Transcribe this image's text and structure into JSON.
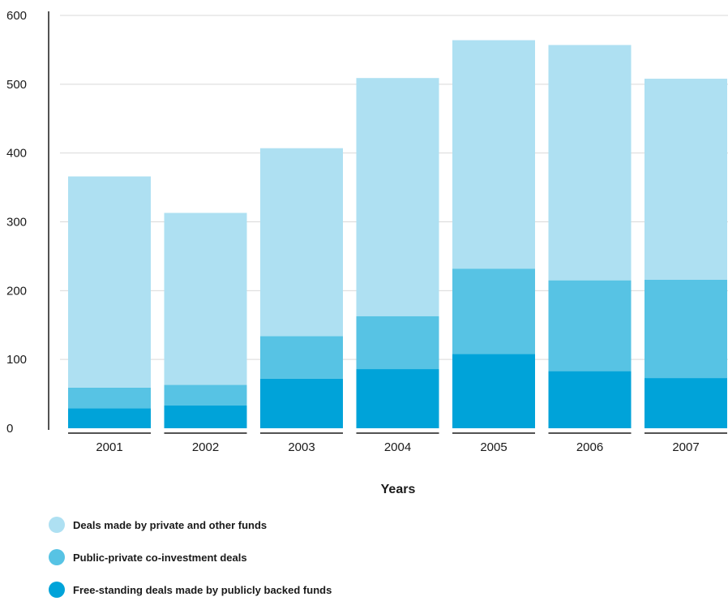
{
  "chart_data": {
    "type": "bar",
    "stacked": true,
    "categories": [
      "2001",
      "2002",
      "2003",
      "2004",
      "2005",
      "2006",
      "2007"
    ],
    "series": [
      {
        "name": "Free-standing deals made by publicly backed funds",
        "color": "#00a3d9",
        "values": [
          29,
          33,
          72,
          86,
          108,
          83,
          73
        ]
      },
      {
        "name": "Public-private co-investment deals",
        "color": "#57c3e4",
        "values": [
          30,
          30,
          62,
          77,
          124,
          132,
          143
        ]
      },
      {
        "name": "Deals made by private and other funds",
        "color": "#aee0f2",
        "values": [
          307,
          250,
          273,
          346,
          332,
          342,
          292
        ]
      }
    ],
    "yticks": [
      0,
      100,
      200,
      300,
      400,
      500,
      600
    ],
    "ylim": [
      0,
      600
    ],
    "xlabel": "Years",
    "ylabel": "",
    "title": "",
    "grid": true,
    "legend_position": "bottom-left"
  },
  "legend": [
    {
      "label": "Deals made by private and other funds",
      "color": "#aee0f2"
    },
    {
      "label": "Public-private co-investment deals",
      "color": "#57c3e4"
    },
    {
      "label": "Free-standing deals made by publicly backed funds",
      "color": "#00a3d9"
    }
  ]
}
